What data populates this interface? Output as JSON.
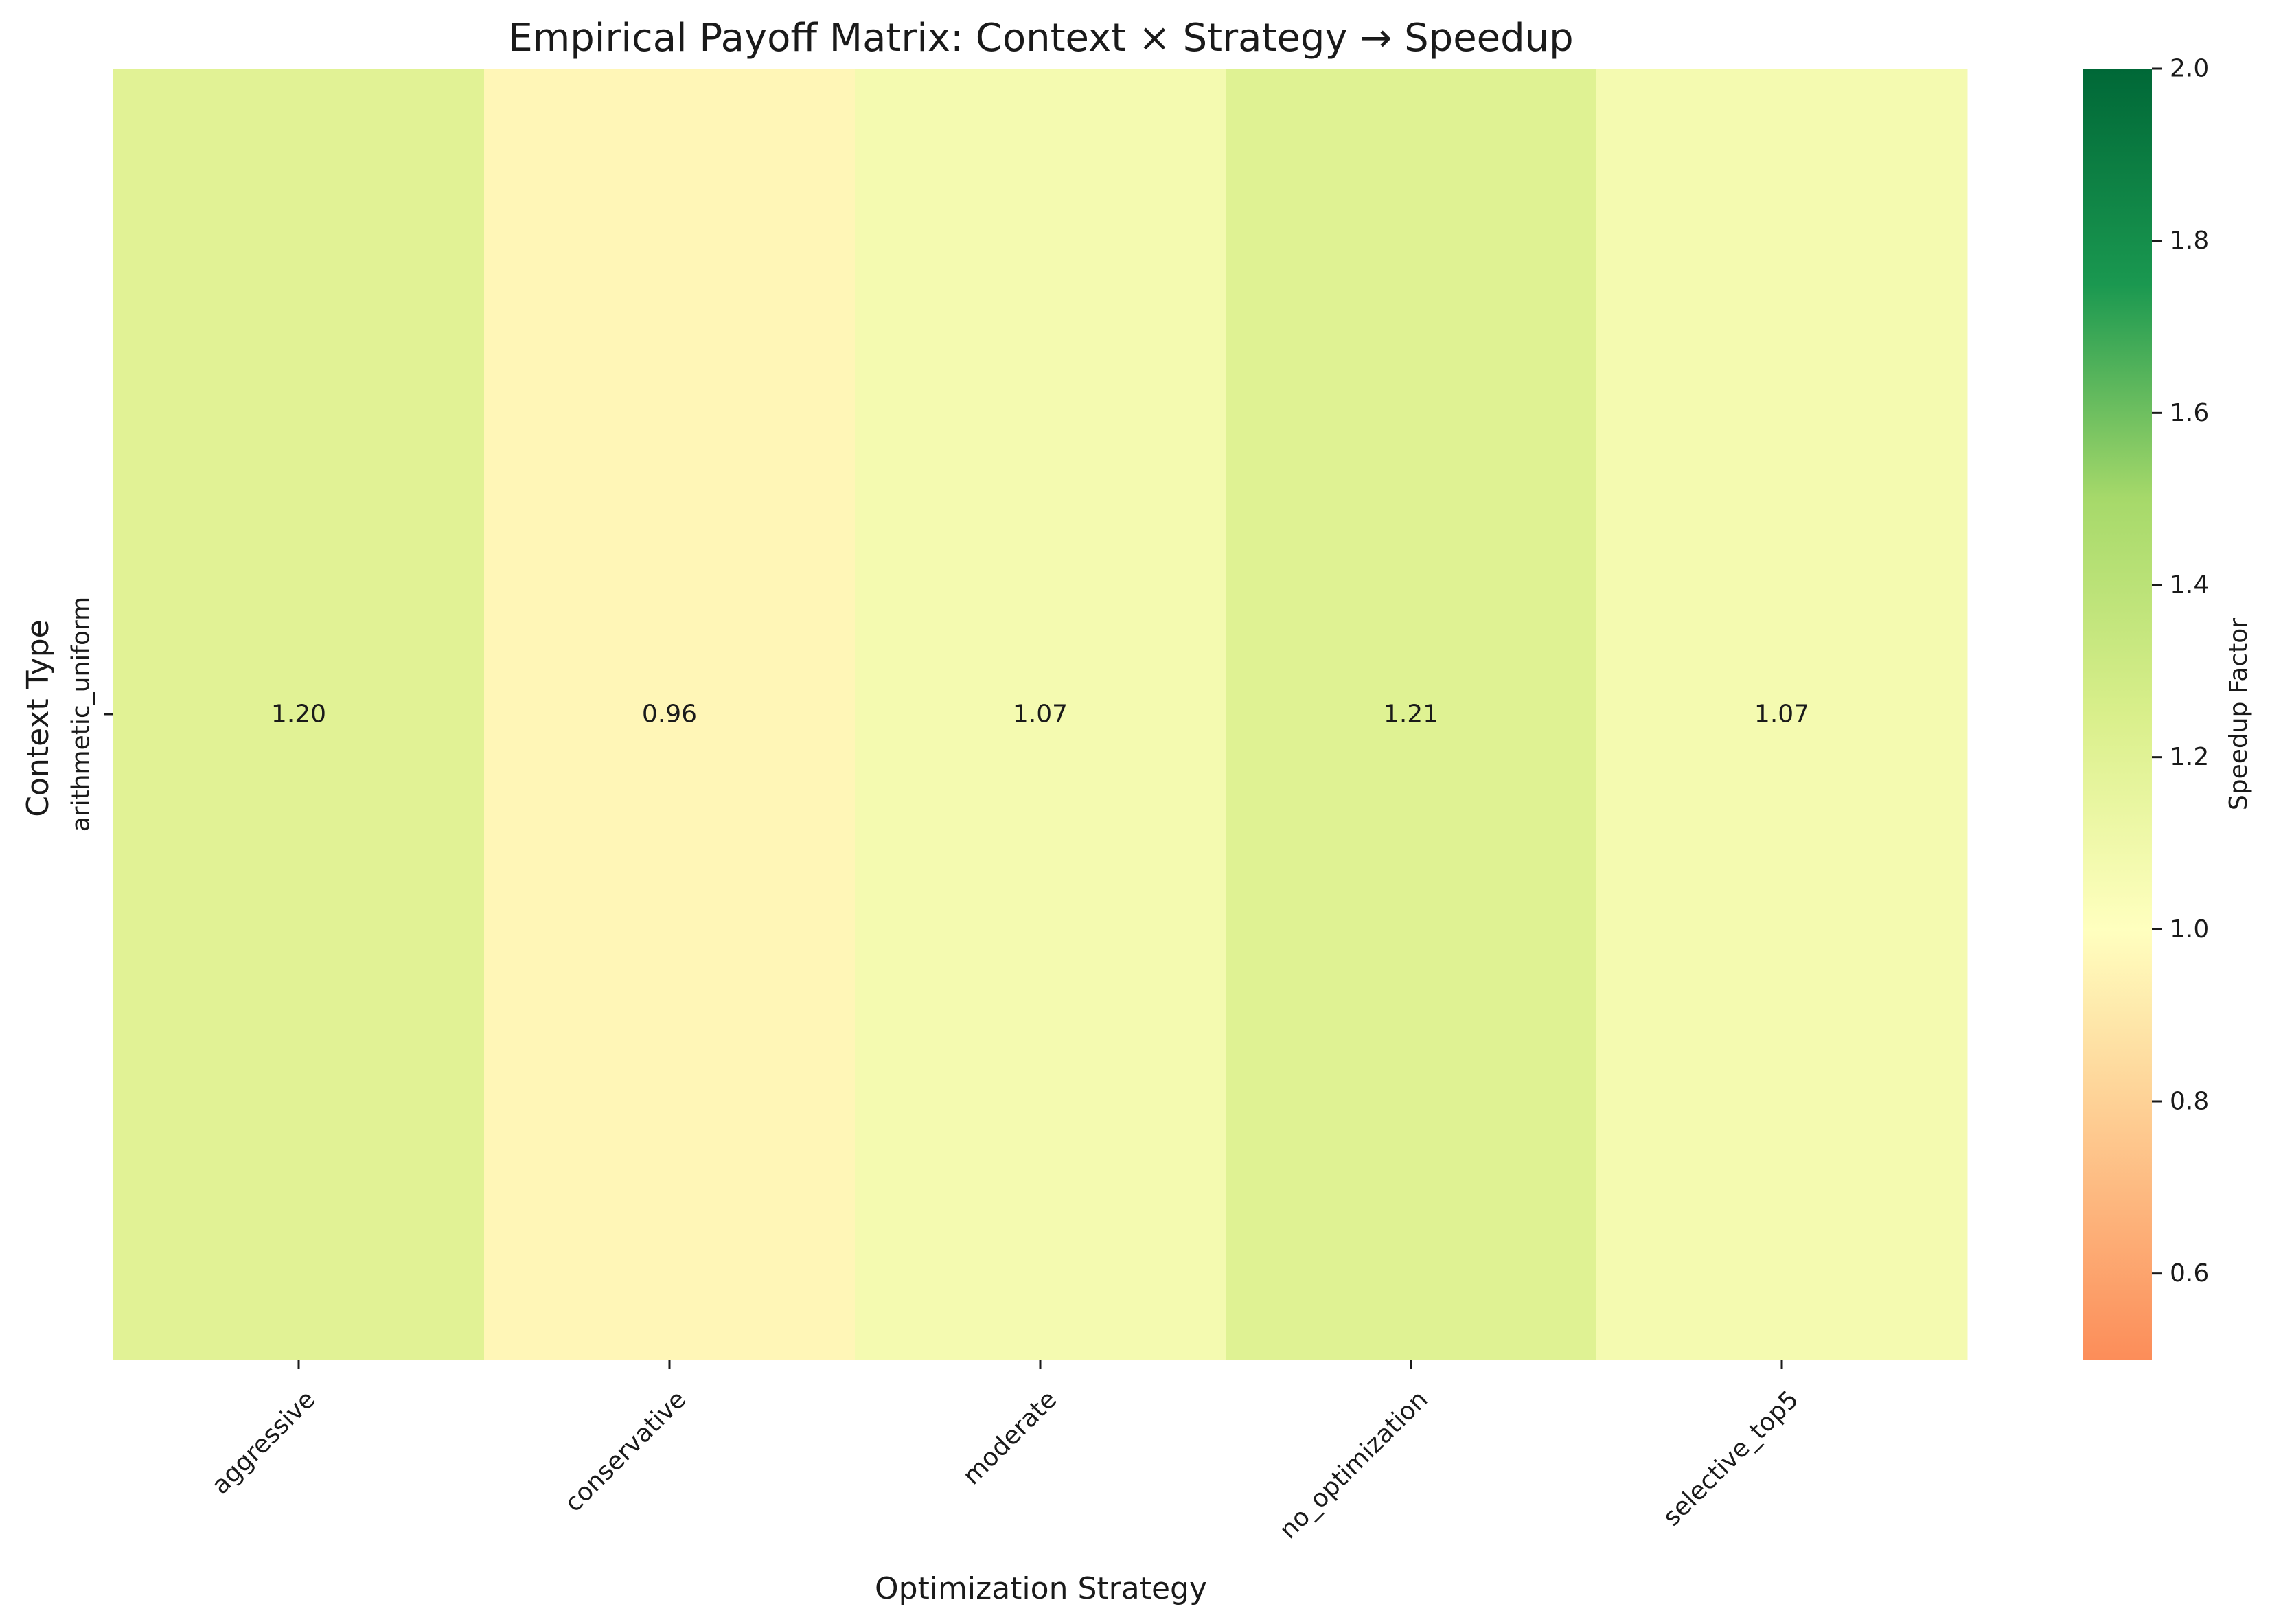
{
  "chart_data": {
    "type": "heatmap",
    "title": "Empirical Payoff Matrix: Context × Strategy → Speedup",
    "xlabel": "Optimization Strategy",
    "ylabel": "Context Type",
    "rows": [
      "arithmetic_uniform"
    ],
    "columns": [
      "aggressive",
      "conservative",
      "moderate",
      "no_optimization",
      "selective_top5"
    ],
    "values": [
      [
        1.2,
        0.96,
        1.07,
        1.21,
        1.07
      ]
    ],
    "value_labels": [
      [
        "1.20",
        "0.96",
        "1.07",
        "1.21",
        "1.07"
      ]
    ],
    "colorbar": {
      "label": "Speedup Factor",
      "range": [
        0.5,
        2.0
      ],
      "ticks": [
        0.6,
        0.8,
        1.0,
        1.2,
        1.4,
        1.6,
        1.8,
        2.0
      ],
      "tick_labels": [
        "0.6",
        "0.8",
        "1.0",
        "1.2",
        "1.4",
        "1.6",
        "1.8",
        "2.0"
      ],
      "colormap": "RdYlGn",
      "center": 1.0
    },
    "grid": false
  }
}
